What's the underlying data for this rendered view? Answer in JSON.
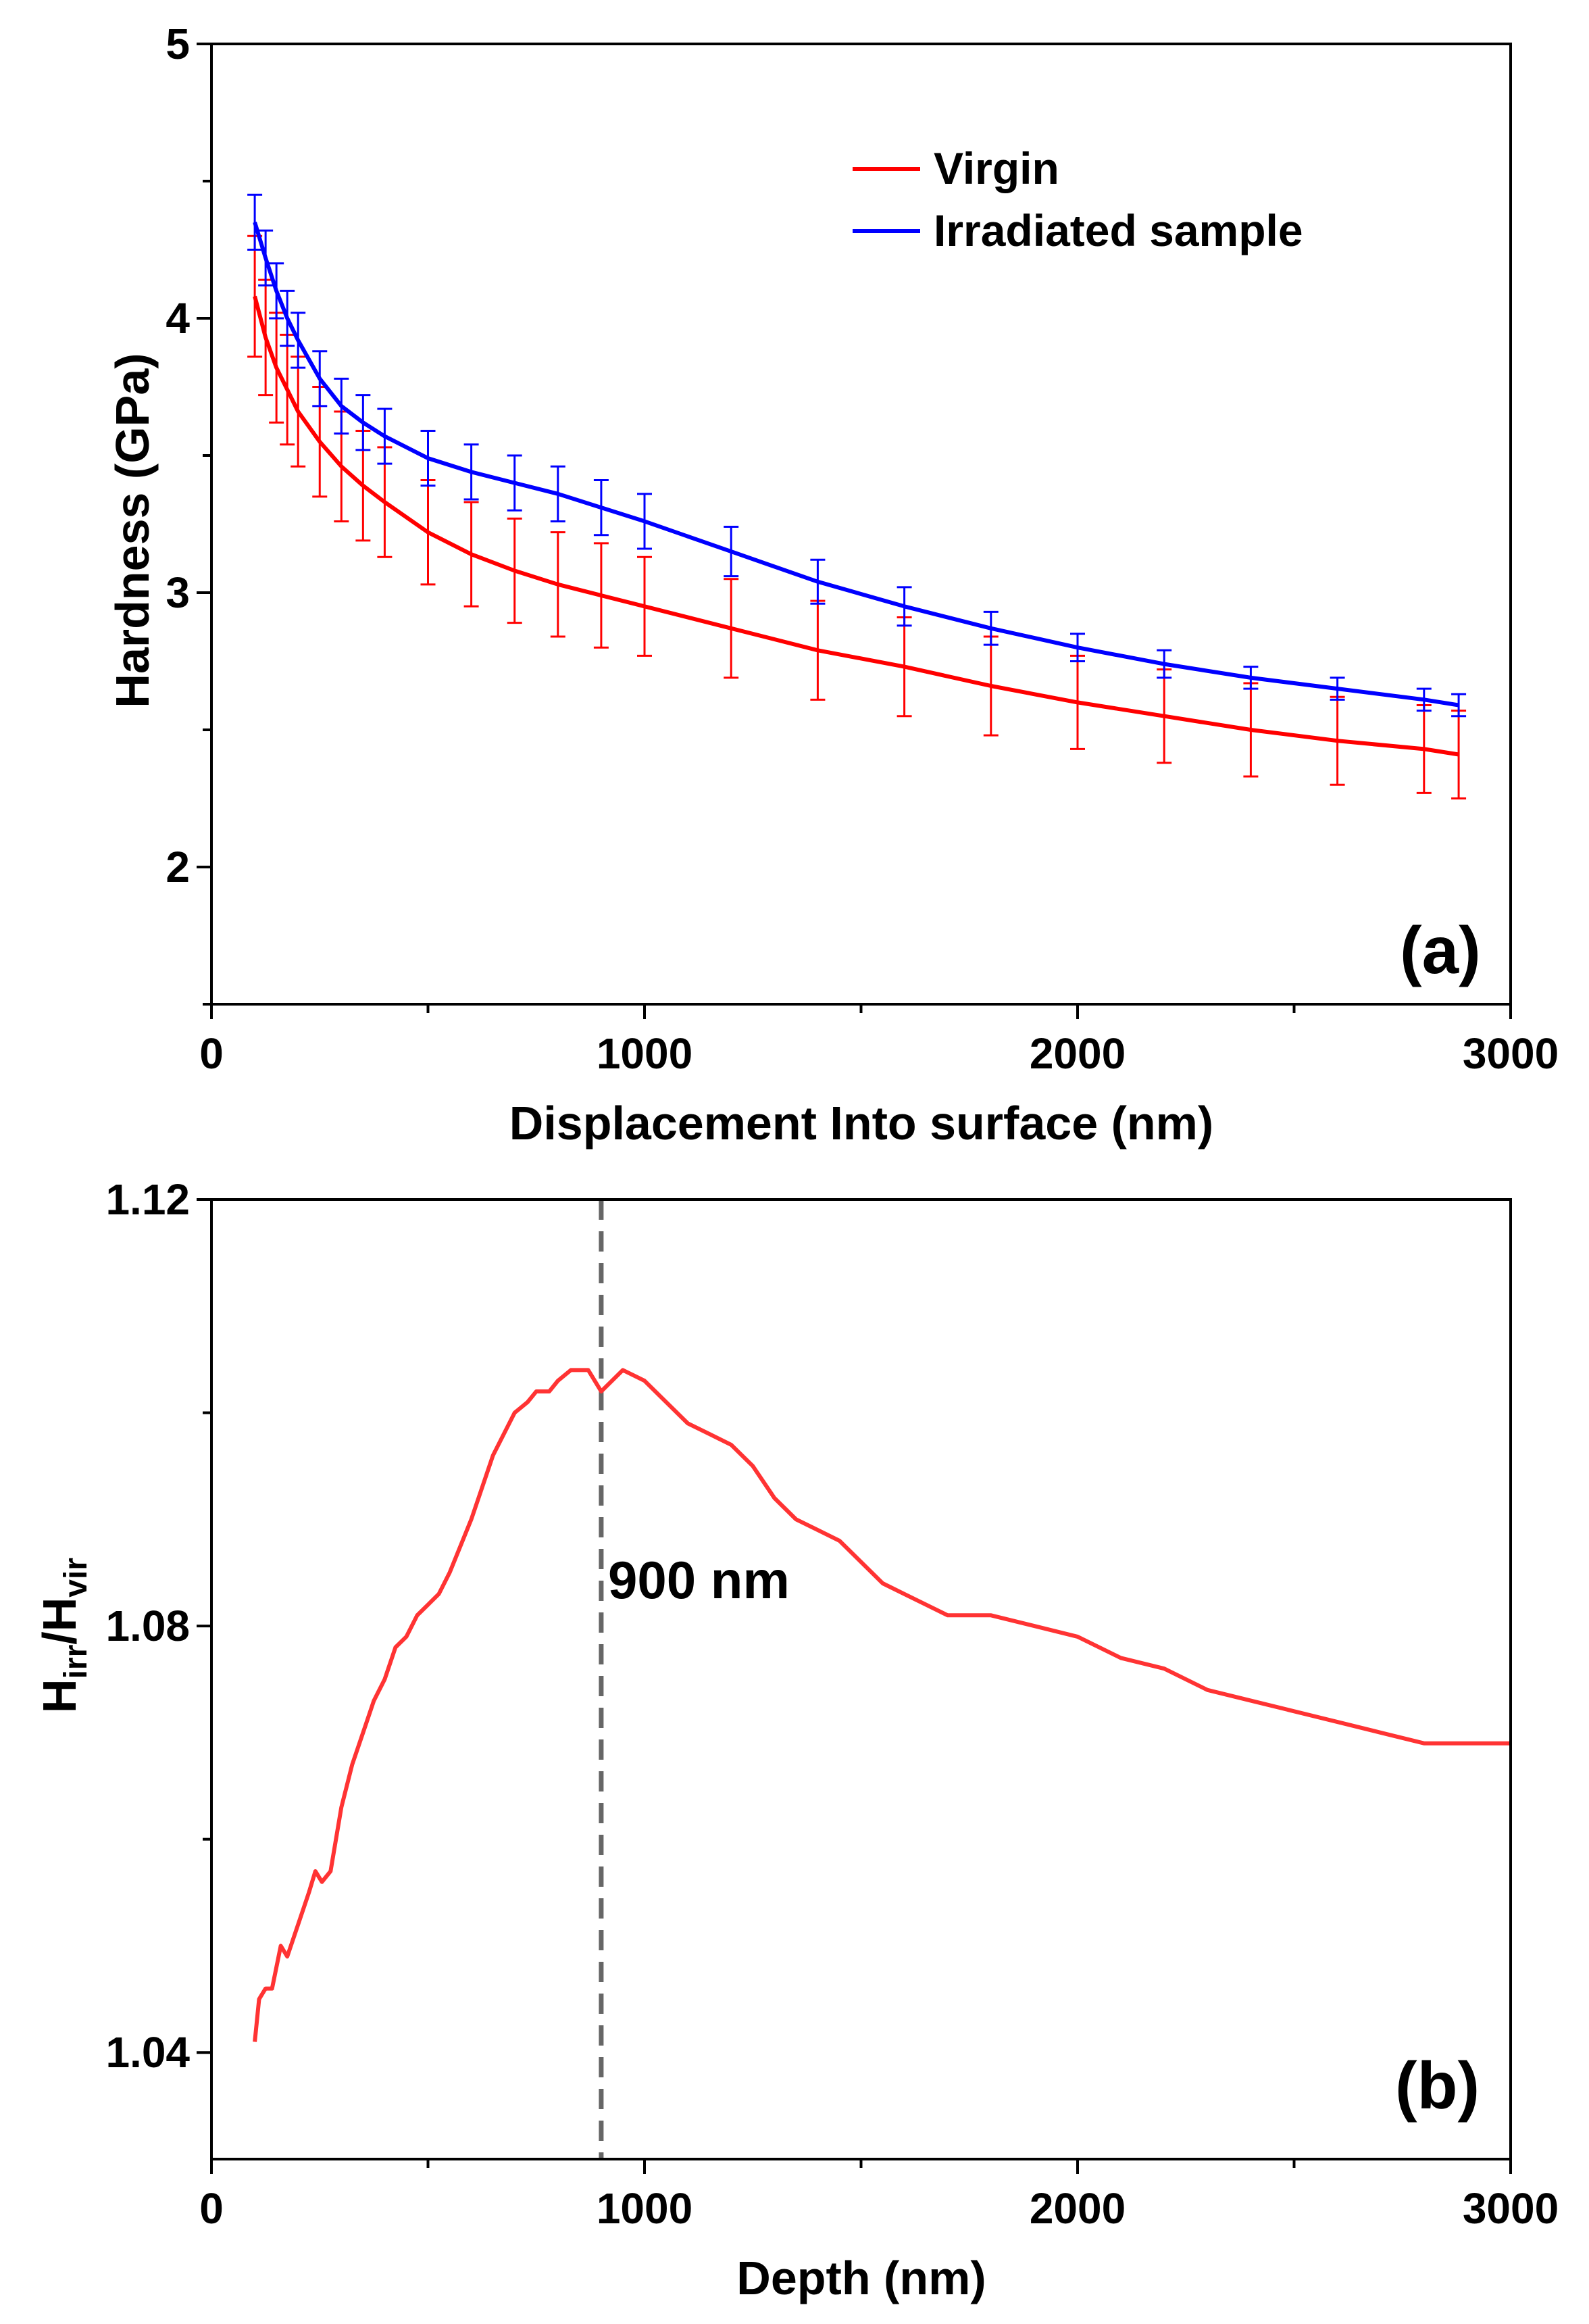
{
  "chart_data": [
    {
      "panel": "(a)",
      "type": "line",
      "xlabel": "Displacement Into surface (nm)",
      "ylabel": "Hardness (GPa)",
      "xlim": [
        0,
        3000
      ],
      "ylim": [
        1.5,
        5
      ],
      "xticks": [
        0,
        1000,
        2000,
        3000
      ],
      "yticks": [
        2,
        3,
        4,
        5
      ],
      "legend": {
        "position": "top-right",
        "entries": [
          "Virgin",
          "Irradiated sample"
        ]
      },
      "series": [
        {
          "name": "Virgin",
          "color": "#ff0000",
          "x": [
            100,
            125,
            150,
            175,
            200,
            250,
            300,
            350,
            400,
            500,
            600,
            700,
            800,
            900,
            1000,
            1200,
            1400,
            1600,
            1800,
            2000,
            2200,
            2400,
            2600,
            2800,
            2880
          ],
          "y": [
            4.08,
            3.93,
            3.82,
            3.74,
            3.66,
            3.55,
            3.46,
            3.39,
            3.33,
            3.22,
            3.14,
            3.08,
            3.03,
            2.99,
            2.95,
            2.87,
            2.79,
            2.73,
            2.66,
            2.6,
            2.55,
            2.5,
            2.46,
            2.43,
            2.41
          ],
          "error": [
            0.22,
            0.21,
            0.2,
            0.2,
            0.2,
            0.2,
            0.2,
            0.2,
            0.2,
            0.19,
            0.19,
            0.19,
            0.19,
            0.19,
            0.18,
            0.18,
            0.18,
            0.18,
            0.18,
            0.17,
            0.17,
            0.17,
            0.16,
            0.16,
            0.16
          ]
        },
        {
          "name": "Irradiated sample",
          "color": "#0000ff",
          "x": [
            100,
            125,
            150,
            175,
            200,
            250,
            300,
            350,
            400,
            500,
            600,
            700,
            800,
            900,
            1000,
            1200,
            1400,
            1600,
            1800,
            2000,
            2200,
            2400,
            2600,
            2800,
            2880
          ],
          "y": [
            4.35,
            4.22,
            4.1,
            4.0,
            3.92,
            3.78,
            3.68,
            3.62,
            3.57,
            3.49,
            3.44,
            3.4,
            3.36,
            3.31,
            3.26,
            3.15,
            3.04,
            2.95,
            2.87,
            2.8,
            2.74,
            2.69,
            2.65,
            2.61,
            2.59
          ],
          "error": [
            0.1,
            0.1,
            0.1,
            0.1,
            0.1,
            0.1,
            0.1,
            0.1,
            0.1,
            0.1,
            0.1,
            0.1,
            0.1,
            0.1,
            0.1,
            0.09,
            0.08,
            0.07,
            0.06,
            0.05,
            0.05,
            0.04,
            0.04,
            0.04,
            0.04
          ]
        }
      ]
    },
    {
      "panel": "(b)",
      "type": "line",
      "xlabel": "Depth (nm)",
      "ylabel_main": "H",
      "ylabel_sub1": "irr",
      "ylabel_sep": "/H",
      "ylabel_sub2": "vir",
      "xlim": [
        0,
        3000
      ],
      "ylim": [
        1.03,
        1.12
      ],
      "xticks": [
        0,
        1000,
        2000,
        3000
      ],
      "yticks": [
        1.04,
        1.08,
        1.12
      ],
      "annotation": {
        "text": "900 nm",
        "x": 900
      },
      "series": [
        {
          "name": "Hirr/Hvir",
          "color": "#ff3333",
          "x": [
            100,
            110,
            125,
            140,
            160,
            175,
            200,
            225,
            240,
            255,
            275,
            300,
            325,
            350,
            375,
            400,
            425,
            450,
            475,
            500,
            525,
            550,
            600,
            650,
            700,
            730,
            750,
            780,
            800,
            830,
            870,
            900,
            950,
            1000,
            1050,
            1100,
            1150,
            1200,
            1250,
            1300,
            1350,
            1400,
            1450,
            1500,
            1550,
            1600,
            1650,
            1700,
            1750,
            1800,
            1900,
            2000,
            2100,
            2200,
            2300,
            2400,
            2500,
            2600,
            2700,
            2800,
            2900,
            3000
          ],
          "y": [
            1.041,
            1.045,
            1.046,
            1.046,
            1.05,
            1.049,
            1.052,
            1.055,
            1.057,
            1.056,
            1.057,
            1.063,
            1.067,
            1.07,
            1.073,
            1.075,
            1.078,
            1.079,
            1.081,
            1.082,
            1.083,
            1.085,
            1.09,
            1.096,
            1.1,
            1.101,
            1.102,
            1.102,
            1.103,
            1.104,
            1.104,
            1.102,
            1.104,
            1.103,
            1.101,
            1.099,
            1.098,
            1.097,
            1.095,
            1.092,
            1.09,
            1.089,
            1.088,
            1.086,
            1.084,
            1.083,
            1.082,
            1.081,
            1.081,
            1.081,
            1.08,
            1.079,
            1.077,
            1.076,
            1.074,
            1.073,
            1.072,
            1.071,
            1.07,
            1.069,
            1.069,
            1.069
          ]
        }
      ]
    }
  ]
}
